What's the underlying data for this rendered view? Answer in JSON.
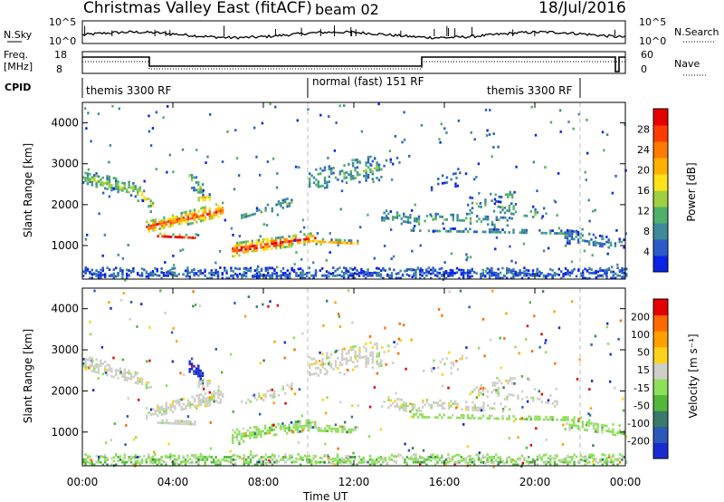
{
  "header": {
    "title": "Christmas Valley East (fitACF)",
    "beam": "beam 02",
    "date": "18/Jul/2016"
  },
  "top_panels": {
    "nsky_label": "N.Sky",
    "nsky_ticks": [
      "10^5",
      "10^0"
    ],
    "nsearch_label": "N.Search",
    "nsearch_ticks": [
      "10^5",
      "10^0"
    ],
    "freq_label_line1": "Freq.",
    "freq_label_line2": "[MHz]",
    "freq_ticks": [
      "18",
      "8"
    ],
    "nave_label": "Nave",
    "nave_ticks": [
      "60",
      "0"
    ],
    "cpid_label": "CPID",
    "cpid_segments": [
      "themis 3300 RF",
      "normal (fast) 151 RF",
      "themis 3300 RF"
    ]
  },
  "chart_data": [
    {
      "type": "heatmap",
      "name": "power",
      "ylabel": "Slant Range [km]",
      "yticks": [
        1000,
        2000,
        3000,
        4000
      ],
      "ylim": [
        180,
        4500
      ],
      "xlim_hours": [
        0,
        24
      ],
      "colorbar": {
        "label": "Power [dB]",
        "ticks": [
          "4",
          "8",
          "12",
          "16",
          "20",
          "24",
          "28"
        ],
        "colors": [
          "#0a22e6",
          "#2a5cc8",
          "#3f8a9a",
          "#4fb06a",
          "#9ed040",
          "#ffe21a",
          "#ffb000",
          "#ff7a00",
          "#ff3c00",
          "#e60000"
        ]
      }
    },
    {
      "type": "heatmap",
      "name": "velocity",
      "ylabel": "Slant Range [km]",
      "yticks": [
        1000,
        2000,
        3000,
        4000
      ],
      "ylim": [
        180,
        4500
      ],
      "xlim_hours": [
        0,
        24
      ],
      "xlabel": "Time UT",
      "xticks": [
        "00:00",
        "04:00",
        "08:00",
        "12:00",
        "16:00",
        "20:00",
        "00:00"
      ],
      "colorbar": {
        "label": "Velocity [m s⁻¹]",
        "ticks": [
          "200",
          "100",
          "50",
          "15",
          "-15",
          "-50",
          "-100",
          "-200"
        ],
        "colors": [
          "#1a2ad0",
          "#2a5ab8",
          "#3a7a6a",
          "#52b83a",
          "#8ee05a",
          "#cfcfc8",
          "#ffd21a",
          "#ffa000",
          "#ff6a00",
          "#e60000"
        ]
      }
    }
  ]
}
